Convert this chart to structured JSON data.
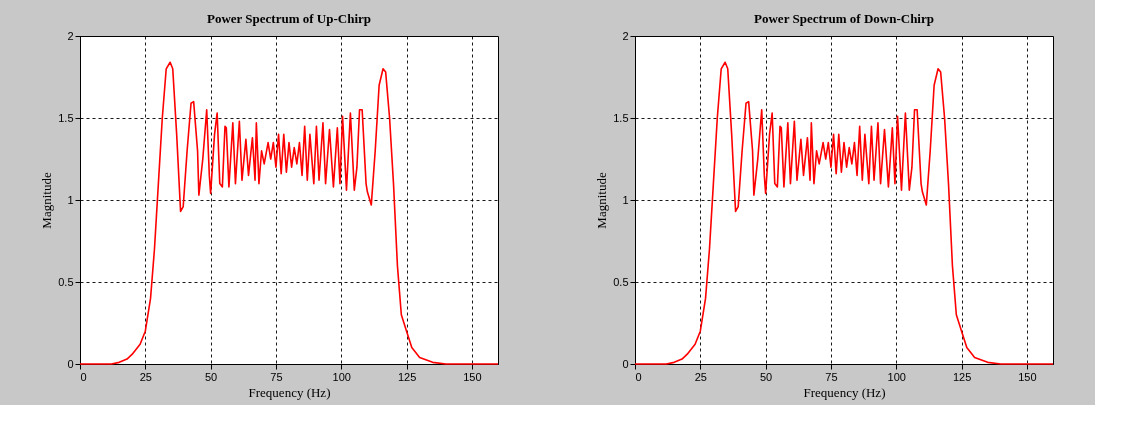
{
  "chart_data": [
    {
      "type": "line",
      "title": "Power Spectrum of Up-Chirp",
      "xlabel": "Frequency (Hz)",
      "ylabel": "Magnitude",
      "xlim": [
        0,
        160
      ],
      "xticks": [
        0,
        25,
        50,
        75,
        100,
        125,
        150
      ],
      "ylim": [
        0,
        2
      ],
      "yticks": [
        0,
        0.5,
        1,
        1.5,
        2
      ],
      "grid": true,
      "line_style": "solid",
      "x": [
        0,
        12,
        15,
        18,
        20,
        23,
        25,
        27,
        28.5,
        30,
        31.5,
        33,
        34.5,
        35.5,
        37,
        38.5,
        39.5,
        41,
        42.5,
        43.5,
        45,
        45.5,
        47,
        48.5,
        49.5,
        50,
        51.5,
        52.5,
        53.5,
        54.5,
        55.5,
        56,
        57,
        58.5,
        59.5,
        61,
        62,
        63.5,
        64.5,
        66,
        67,
        67.5,
        68.5,
        69.5,
        70.5,
        72,
        73,
        74,
        75,
        76,
        77,
        78,
        79,
        80,
        81,
        82,
        83,
        84,
        85,
        86,
        87,
        88,
        89.5,
        90.5,
        91.5,
        93,
        94,
        95.5,
        97,
        98.5,
        99.5,
        100.5,
        102,
        103.5,
        105,
        106,
        107,
        108,
        109.5,
        110,
        111.5,
        113,
        114.5,
        116,
        117,
        118.5,
        120,
        121.5,
        123,
        125,
        127,
        130,
        135,
        140,
        160
      ],
      "series": [
        {
          "color": "#ff0000",
          "values": [
            0,
            0,
            0.01,
            0.03,
            0.06,
            0.12,
            0.2,
            0.4,
            0.7,
            1.1,
            1.5,
            1.8,
            1.84,
            1.8,
            1.4,
            0.93,
            0.96,
            1.3,
            1.59,
            1.6,
            1.3,
            1.03,
            1.25,
            1.55,
            1.15,
            1.04,
            1.4,
            1.53,
            1.1,
            1.08,
            1.45,
            1.44,
            1.08,
            1.47,
            1.1,
            1.48,
            1.12,
            1.37,
            1.15,
            1.38,
            1.12,
            1.47,
            1.1,
            1.3,
            1.22,
            1.35,
            1.25,
            1.35,
            1.2,
            1.4,
            1.16,
            1.4,
            1.17,
            1.35,
            1.2,
            1.32,
            1.22,
            1.35,
            1.15,
            1.45,
            1.12,
            1.4,
            1.1,
            1.45,
            1.12,
            1.47,
            1.1,
            1.43,
            1.08,
            1.44,
            1.1,
            1.51,
            1.06,
            1.53,
            1.06,
            1.2,
            1.55,
            1.55,
            1.1,
            1.05,
            0.97,
            1.3,
            1.7,
            1.8,
            1.78,
            1.5,
            1.1,
            0.6,
            0.3,
            0.2,
            0.1,
            0.04,
            0.01,
            0,
            0
          ]
        }
      ]
    },
    {
      "type": "line",
      "title": "Power Spectrum of Down-Chirp",
      "xlabel": "Frequency (Hz)",
      "ylabel": "Magnitude",
      "xlim": [
        0,
        160
      ],
      "xticks": [
        0,
        25,
        50,
        75,
        100,
        125,
        150
      ],
      "ylim": [
        0,
        2
      ],
      "yticks": [
        0,
        0.5,
        1,
        1.5,
        2
      ],
      "grid": true,
      "line_style": "solid",
      "x": [
        0,
        12,
        15,
        18,
        20,
        23,
        25,
        27,
        28.5,
        30,
        31.5,
        33,
        34.5,
        35.5,
        37,
        38.5,
        39.5,
        41,
        42.5,
        43.5,
        45,
        45.5,
        47,
        48.5,
        49.5,
        50,
        51.5,
        52.5,
        53.5,
        54.5,
        55.5,
        56,
        57,
        58.5,
        59.5,
        61,
        62,
        63.5,
        64.5,
        66,
        67,
        67.5,
        68.5,
        69.5,
        70.5,
        72,
        73,
        74,
        75,
        76,
        77,
        78,
        79,
        80,
        81,
        82,
        83,
        84,
        85,
        86,
        87,
        88,
        89.5,
        90.5,
        91.5,
        93,
        94,
        95.5,
        97,
        98.5,
        99.5,
        100.5,
        102,
        103.5,
        105,
        106,
        107,
        108,
        109.5,
        110,
        111.5,
        113,
        114.5,
        116,
        117,
        118.5,
        120,
        121.5,
        123,
        125,
        127,
        130,
        135,
        140,
        160
      ],
      "series": [
        {
          "color": "#ff0000",
          "values": [
            0,
            0,
            0.01,
            0.03,
            0.06,
            0.12,
            0.2,
            0.4,
            0.7,
            1.1,
            1.5,
            1.8,
            1.84,
            1.8,
            1.4,
            0.93,
            0.96,
            1.3,
            1.59,
            1.6,
            1.3,
            1.03,
            1.25,
            1.55,
            1.15,
            1.04,
            1.4,
            1.53,
            1.1,
            1.08,
            1.45,
            1.44,
            1.08,
            1.47,
            1.1,
            1.48,
            1.12,
            1.37,
            1.15,
            1.38,
            1.12,
            1.47,
            1.1,
            1.3,
            1.22,
            1.35,
            1.25,
            1.35,
            1.2,
            1.4,
            1.16,
            1.4,
            1.17,
            1.35,
            1.2,
            1.32,
            1.22,
            1.35,
            1.15,
            1.45,
            1.12,
            1.4,
            1.1,
            1.45,
            1.12,
            1.47,
            1.1,
            1.43,
            1.08,
            1.44,
            1.1,
            1.51,
            1.06,
            1.53,
            1.06,
            1.2,
            1.55,
            1.55,
            1.1,
            1.05,
            0.97,
            1.3,
            1.7,
            1.8,
            1.78,
            1.5,
            1.1,
            0.6,
            0.3,
            0.2,
            0.1,
            0.04,
            0.01,
            0,
            0
          ]
        }
      ]
    }
  ]
}
